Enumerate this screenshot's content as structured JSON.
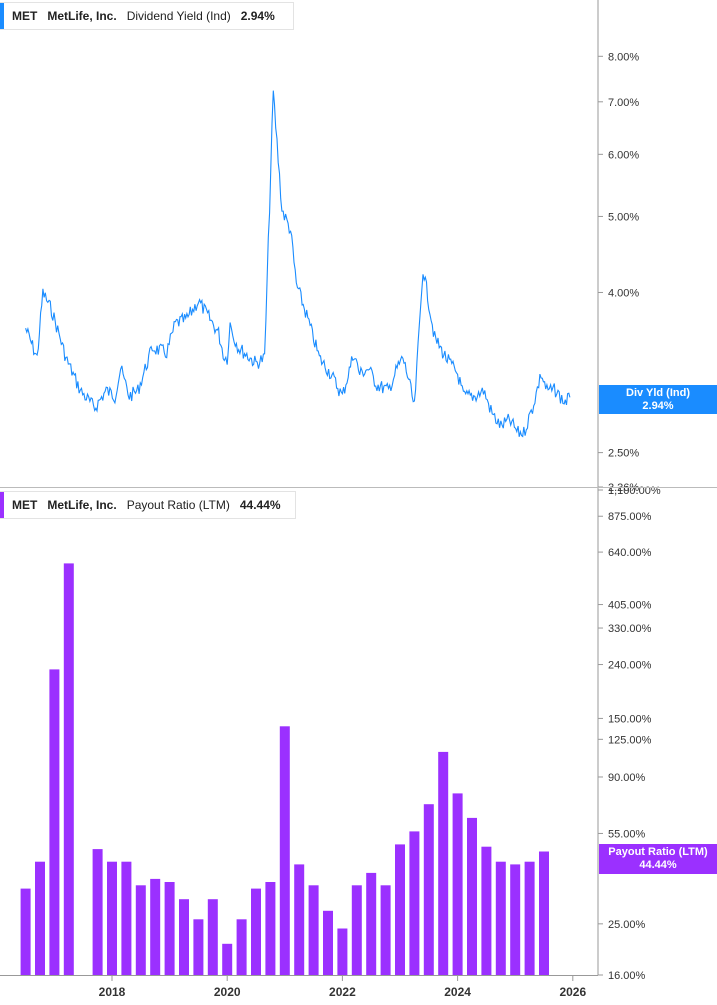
{
  "chart_data": [
    {
      "type": "line",
      "legend": {
        "ticker": "MET",
        "company": "MetLife, Inc.",
        "metric": "Dividend Yield (Ind)",
        "value": "2.94%"
      },
      "current_label": {
        "title": "Div Yld (Ind)",
        "value": "2.94%"
      },
      "y_scale": "log",
      "ylim": [
        2.26,
        9.3
      ],
      "y_ticks": [
        {
          "value": 2.26,
          "label": "2.26%"
        },
        {
          "value": 2.5,
          "label": "2.50%"
        },
        {
          "value": 4.0,
          "label": "4.00%"
        },
        {
          "value": 5.0,
          "label": "5.00%"
        },
        {
          "value": 6.0,
          "label": "6.00%"
        },
        {
          "value": 7.0,
          "label": "7.00%"
        },
        {
          "value": 8.0,
          "label": "8.00%"
        }
      ],
      "x": [
        2016.5,
        2016.7,
        2016.8,
        2016.95,
        2017.1,
        2017.2,
        2017.45,
        2017.7,
        2017.9,
        2018.05,
        2018.15,
        2018.3,
        2018.45,
        2018.7,
        2018.95,
        2019.1,
        2019.3,
        2019.5,
        2019.7,
        2019.85,
        2019.95,
        2020.0,
        2020.05,
        2020.12,
        2020.2,
        2020.3,
        2020.4,
        2020.5,
        2020.65,
        2020.8,
        2020.95,
        2021.1,
        2021.2,
        2021.4,
        2021.6,
        2021.8,
        2022.0,
        2022.2,
        2022.3,
        2022.45,
        2022.6,
        2022.8,
        2022.95,
        2023.05,
        2023.15,
        2023.25,
        2023.4,
        2023.6,
        2023.8,
        2024.0,
        2024.1,
        2024.3,
        2024.45,
        2024.6,
        2024.75,
        2024.9,
        2025.05,
        2025.15,
        2025.3,
        2025.45,
        2025.55,
        2025.7,
        2025.85,
        2025.95
      ],
      "values": [
        3.6,
        3.3,
        4.0,
        3.8,
        3.5,
        3.3,
        3.0,
        2.85,
        3.0,
        2.95,
        3.2,
        2.95,
        3.0,
        3.4,
        3.35,
        3.65,
        3.7,
        3.9,
        3.7,
        3.55,
        3.3,
        3.3,
        3.65,
        3.5,
        3.4,
        3.35,
        3.3,
        3.25,
        3.3,
        7.2,
        5.1,
        4.8,
        4.1,
        3.7,
        3.3,
        3.15,
        2.95,
        3.35,
        3.15,
        3.2,
        3.05,
        3.0,
        3.2,
        3.3,
        3.1,
        2.85,
        4.3,
        3.5,
        3.3,
        3.15,
        2.95,
        2.95,
        3.0,
        2.8,
        2.7,
        2.75,
        2.65,
        2.65,
        2.85,
        3.15,
        3.0,
        3.0,
        2.9,
        2.94
      ],
      "series": [
        {
          "name": "Dividend Yield (Ind)",
          "color": "#1a8cff"
        }
      ]
    },
    {
      "type": "bar",
      "legend": {
        "ticker": "MET",
        "company": "MetLife, Inc.",
        "metric": "Payout Ratio (LTM)",
        "value": "44.44%"
      },
      "current_label": {
        "title": "Payout Ratio (LTM)",
        "value": "44.44%"
      },
      "y_scale": "log",
      "ylim": [
        16,
        1100
      ],
      "y_ticks": [
        {
          "value": 16,
          "label": "16.00%"
        },
        {
          "value": 25,
          "label": "25.00%"
        },
        {
          "value": 55,
          "label": "55.00%"
        },
        {
          "value": 90,
          "label": "90.00%"
        },
        {
          "value": 125,
          "label": "125.00%"
        },
        {
          "value": 150,
          "label": "150.00%"
        },
        {
          "value": 240,
          "label": "240.00%"
        },
        {
          "value": 330,
          "label": "330.00%"
        },
        {
          "value": 405,
          "label": "405.00%"
        },
        {
          "value": 640,
          "label": "640.00%"
        },
        {
          "value": 875,
          "label": "875.00%"
        },
        {
          "value": 1100,
          "label": "1,100.00%"
        }
      ],
      "x": [
        2016.5,
        2016.75,
        2017.0,
        2017.25,
        2017.5,
        2017.75,
        2018.0,
        2018.25,
        2018.5,
        2018.75,
        2019.0,
        2019.25,
        2019.5,
        2019.75,
        2020.0,
        2020.25,
        2020.5,
        2020.75,
        2021.0,
        2021.25,
        2021.5,
        2021.75,
        2022.0,
        2022.25,
        2022.5,
        2022.75,
        2023.0,
        2023.25,
        2023.5,
        2023.75,
        2024.0,
        2024.25,
        2024.5,
        2024.75,
        2025.0,
        2025.25,
        2025.5,
        2025.75
      ],
      "values": [
        34,
        43,
        230,
        580,
        null,
        48,
        43,
        43,
        35,
        37,
        36,
        31,
        26,
        31,
        21,
        26,
        34,
        36,
        140,
        42,
        35,
        28,
        24,
        35,
        39,
        35,
        50,
        56,
        71,
        112,
        78,
        63,
        49,
        43,
        42,
        43,
        47,
        null
      ],
      "series": [
        {
          "name": "Payout Ratio (LTM)",
          "color": "#9b30ff"
        }
      ]
    }
  ],
  "x_axis": {
    "ticks": [
      {
        "value": 2018,
        "label": "2018"
      },
      {
        "value": 2020,
        "label": "2020"
      },
      {
        "value": 2022,
        "label": "2022"
      },
      {
        "value": 2024,
        "label": "2024"
      },
      {
        "value": 2026,
        "label": "2026"
      }
    ]
  }
}
